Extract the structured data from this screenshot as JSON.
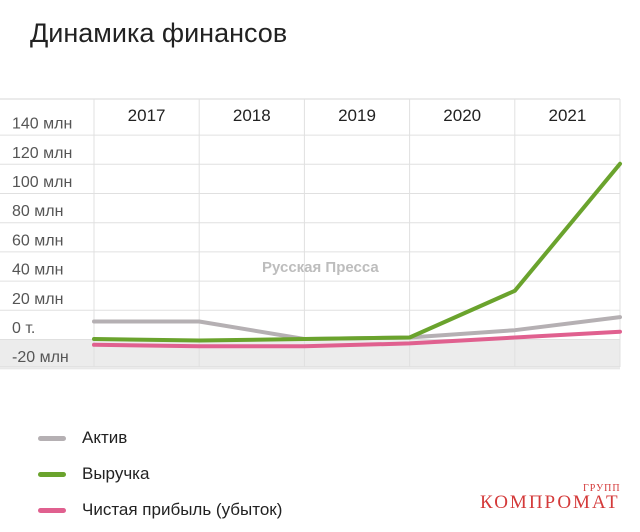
{
  "header": {
    "title": "Динамика финансов"
  },
  "watermark": "Русская Пресса",
  "brand": {
    "main": "КОМПРОМАТ",
    "sup": "ГРУПП",
    "color": "#d43a3a"
  },
  "chart_data": {
    "type": "line",
    "title": "Динамика финансов",
    "categories": [
      "2017",
      "2018",
      "2019",
      "2020",
      "2021"
    ],
    "x": [
      2016.5,
      2017.5,
      2018.5,
      2019.5,
      2020.5,
      2021.5
    ],
    "y_ticks": [
      {
        "value": 140,
        "label": "140 млн"
      },
      {
        "value": 120,
        "label": "120 млн"
      },
      {
        "value": 100,
        "label": "100 млн"
      },
      {
        "value": 80,
        "label": "80 млн"
      },
      {
        "value": 60,
        "label": "60 млн"
      },
      {
        "value": 40,
        "label": "40 млн"
      },
      {
        "value": 20,
        "label": "20 млн"
      },
      {
        "value": 0,
        "label": "0 т."
      },
      {
        "value": -20,
        "label": "-20 млн"
      }
    ],
    "ylim": [
      -30,
      150
    ],
    "y_unit": "млн",
    "grid": true,
    "legend_position": "bottom-left",
    "series": [
      {
        "name": "Актив",
        "color": "#b5b0b3",
        "values": [
          12,
          12,
          0,
          1,
          6,
          15
        ]
      },
      {
        "name": "Выручка",
        "color": "#6aa32d",
        "values": [
          0,
          -1,
          0,
          1,
          33,
          120
        ]
      },
      {
        "name": "Чистая прибыль (убыток)",
        "color": "#e0608f",
        "values": [
          -4,
          -5,
          -5,
          -3,
          1,
          5
        ]
      }
    ]
  }
}
